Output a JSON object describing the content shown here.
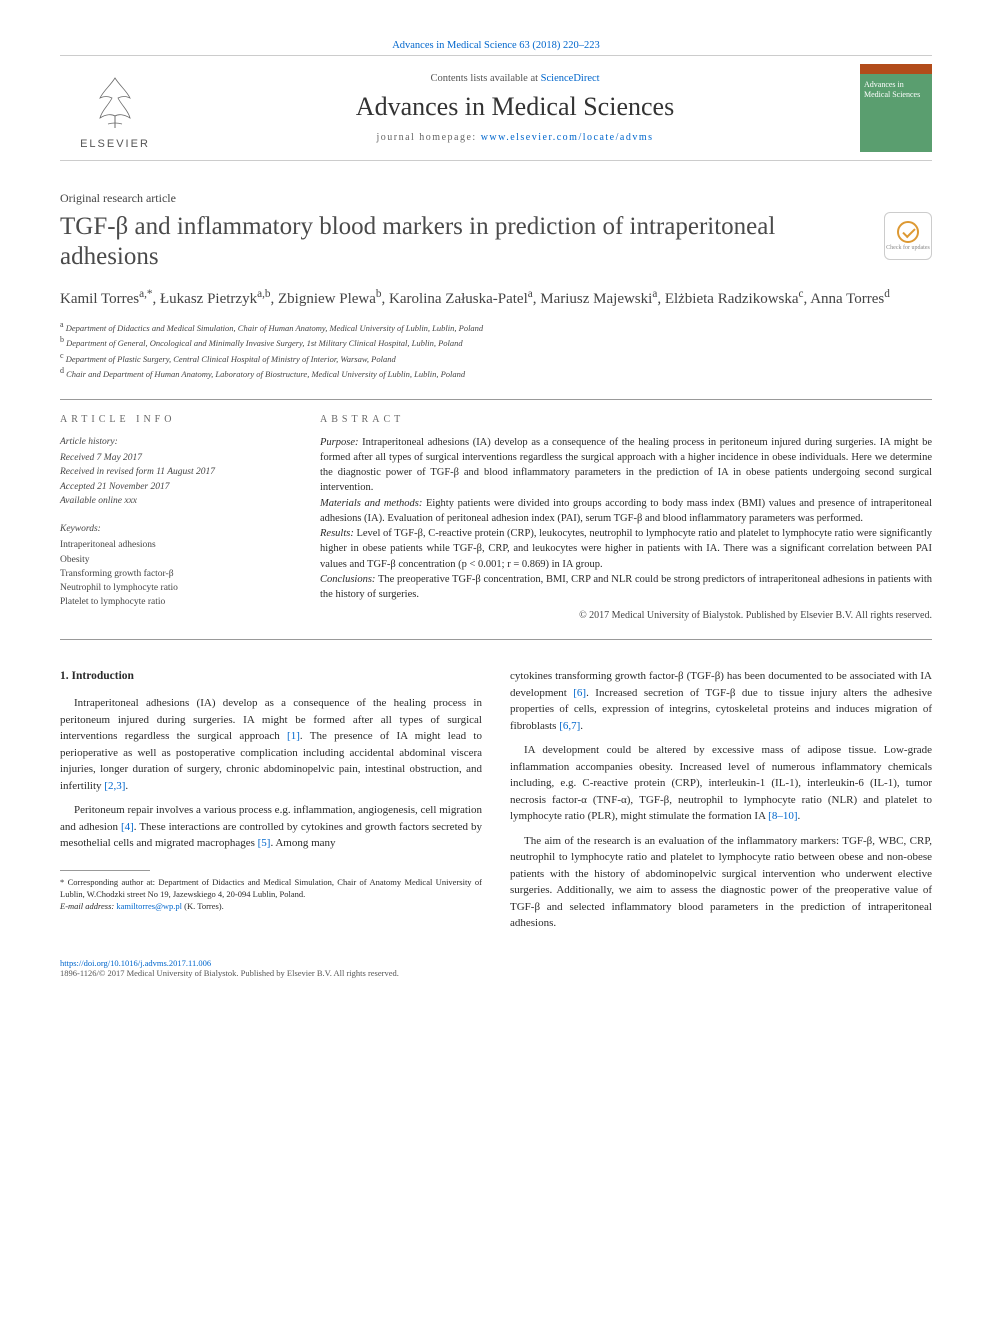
{
  "header": {
    "top_link": "Advances in Medical Science 63 (2018) 220–223",
    "contents_line_prefix": "Contents lists available at ",
    "contents_link": "ScienceDirect",
    "journal_name": "Advances in Medical Sciences",
    "homepage_prefix": "journal homepage: ",
    "homepage_link": "www.elsevier.com/locate/advms",
    "elsevier_label": "ELSEVIER",
    "thumb_text": "Advances in Medical Sciences"
  },
  "article": {
    "type": "Original research article",
    "title": "TGF-β and inflammatory blood markers in prediction of intraperitoneal adhesions",
    "crossmark_label": "Check for updates",
    "authors_html": "Kamil Torres<sup>a,*</sup>, Łukasz Pietrzyk<sup>a,b</sup>, Zbigniew Plewa<sup>b</sup>, Karolina Załuska-Patel<sup>a</sup>, Mariusz Majewski<sup>a</sup>, Elżbieta Radzikowska<sup>c</sup>, Anna Torres<sup>d</sup>",
    "affiliations": [
      {
        "sup": "a",
        "text": "Department of Didactics and Medical Simulation, Chair of Human Anatomy, Medical University of Lublin, Lublin, Poland"
      },
      {
        "sup": "b",
        "text": "Department of General, Oncological and Minimally Invasive Surgery, 1st Military Clinical Hospital, Lublin, Poland"
      },
      {
        "sup": "c",
        "text": "Department of Plastic Surgery, Central Clinical Hospital of Ministry of Interior, Warsaw, Poland"
      },
      {
        "sup": "d",
        "text": "Chair and Department of Human Anatomy, Laboratory of Biostructure, Medical University of Lublin, Lublin, Poland"
      }
    ]
  },
  "info": {
    "label": "ARTICLE INFO",
    "history_heading": "Article history:",
    "history": [
      "Received 7 May 2017",
      "Received in revised form 11 August 2017",
      "Accepted 21 November 2017",
      "Available online xxx"
    ],
    "keywords_heading": "Keywords:",
    "keywords": [
      "Intraperitoneal adhesions",
      "Obesity",
      "Transforming growth factor-β",
      "Neutrophil to lymphocyte ratio",
      "Platelet to lymphocyte ratio"
    ]
  },
  "abstract": {
    "label": "ABSTRACT",
    "purpose_label": "Purpose:",
    "purpose": " Intraperitoneal adhesions (IA) develop as a consequence of the healing process in peritoneum injured during surgeries. IA might be formed after all types of surgical interventions regardless the surgical approach with a higher incidence in obese individuals. Here we determine the diagnostic power of TGF-β and blood inflammatory parameters in the prediction of IA in obese patients undergoing second surgical intervention.",
    "methods_label": "Materials and methods:",
    "methods": " Eighty patients were divided into groups according to body mass index (BMI) values and presence of intraperitoneal adhesions (IA). Evaluation of peritoneal adhesion index (PAI), serum TGF-β and blood inflammatory parameters was performed.",
    "results_label": "Results:",
    "results": " Level of TGF-β, C-reactive protein (CRP), leukocytes, neutrophil to lymphocyte ratio and platelet to lymphocyte ratio were significantly higher in obese patients while TGF-β, CRP, and leukocytes were higher in patients with IA. There was a significant correlation between PAI values and TGF-β concentration (p < 0.001; r = 0.869) in IA group.",
    "conclusions_label": "Conclusions:",
    "conclusions": " The preoperative TGF-β concentration, BMI, CRP and NLR could be strong predictors of intraperitoneal adhesions in patients with the history of surgeries.",
    "copyright": "© 2017 Medical University of Bialystok. Published by Elsevier B.V. All rights reserved."
  },
  "body": {
    "heading": "1. Introduction",
    "col1": [
      "Intraperitoneal adhesions (IA) develop as a consequence of the healing process in peritoneum injured during surgeries. IA might be formed after all types of surgical interventions regardless the surgical approach [1]. The presence of IA might lead to perioperative as well as postoperative complication including accidental abdominal viscera injuries, longer duration of surgery, chronic abdominopelvic pain, intestinal obstruction, and infertility [2,3].",
      "Peritoneum repair involves a various process e.g. inflammation, angiogenesis, cell migration and adhesion [4]. These interactions are controlled by cytokines and growth factors secreted by mesothelial cells and migrated macrophages [5]. Among many"
    ],
    "col2": [
      "cytokines transforming growth factor-β (TGF-β) has been documented to be associated with IA development [6]. Increased secretion of TGF-β due to tissue injury alters the adhesive properties of cells, expression of integrins, cytoskeletal proteins and induces migration of fibroblasts [6,7].",
      "IA development could be altered by excessive mass of adipose tissue. Low-grade inflammation accompanies obesity. Increased level of numerous inflammatory chemicals including, e.g. C-reactive protein (CRP), interleukin-1 (IL-1), interleukin-6 (IL-1), tumor necrosis factor-α (TNF-α), TGF-β, neutrophil to lymphocyte ratio (NLR) and platelet to lymphocyte ratio (PLR), might stimulate the formation IA [8–10].",
      "The aim of the research is an evaluation of the inflammatory markers: TGF-β, WBC, CRP, neutrophil to lymphocyte ratio and platelet to lymphocyte ratio between obese and non-obese patients with the history of abdominopelvic surgical intervention who underwent elective surgeries. Additionally, we aim to assess the diagnostic power of the preoperative value of TGF-β and selected inflammatory blood parameters in the prediction of intraperitoneal adhesions."
    ]
  },
  "footnote": {
    "corresponding": "* Corresponding author at: Department of Didactics and Medical Simulation, Chair of Anatomy Medical University of Lublin, W.Chodzki street No 19, Jazewskiego 4, 20-094 Lublin, Poland.",
    "email_label": "E-mail address: ",
    "email": "kamiltorres@wp.pl",
    "email_suffix": " (K. Torres)."
  },
  "footer": {
    "doi": "https://doi.org/10.1016/j.advms.2017.11.006",
    "copyright_line": "1896-1126/© 2017 Medical University of Bialystok. Published by Elsevier B.V. All rights reserved."
  },
  "refs": [
    "[1]",
    "[2,3]",
    "[4]",
    "[5]",
    "[6]",
    "[6,7]",
    "[8–10]"
  ],
  "colors": {
    "link": "#0066cc",
    "text": "#2a2a2a",
    "rule": "#999999",
    "thumb_bg": "#5a9e6f",
    "thumb_stripe": "#b24c1a"
  }
}
